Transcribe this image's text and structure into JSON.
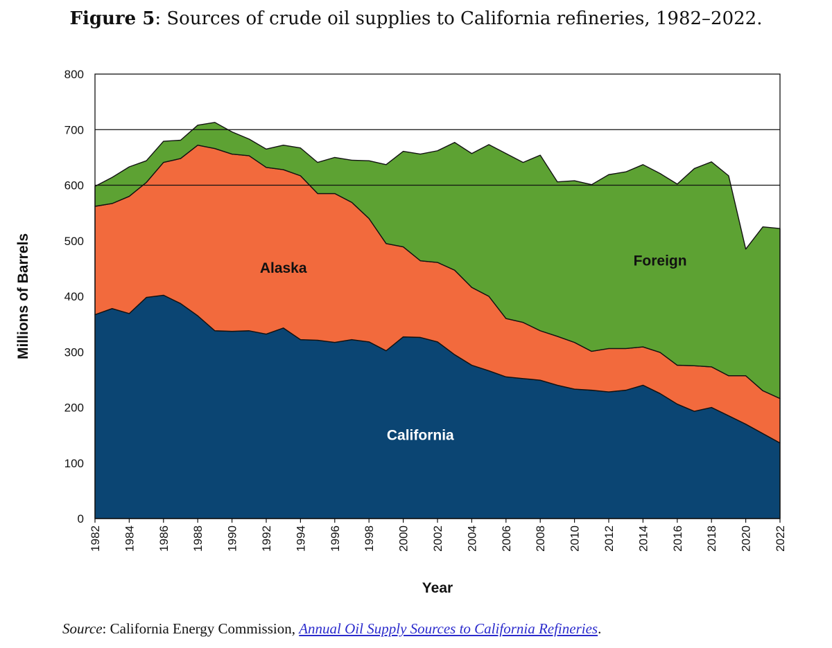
{
  "figure": {
    "label": "Figure 5",
    "caption": ": Sources of crude oil supplies to California refineries, 1982–2022."
  },
  "source": {
    "prefix": "Source",
    "text": ": California Energy Commission, ",
    "link_text": "Annual Oil Supply Sources to California Refineries",
    "suffix": "."
  },
  "chart_data": {
    "type": "area",
    "stacked": true,
    "xlabel": "Year",
    "ylabel": "Millions of Barrels",
    "xlim": [
      1982,
      2022
    ],
    "ylim": [
      0,
      800
    ],
    "yticks": [
      0,
      100,
      200,
      300,
      400,
      500,
      600,
      700,
      800
    ],
    "xticks": [
      1982,
      1984,
      1986,
      1988,
      1990,
      1992,
      1994,
      1996,
      1998,
      2000,
      2002,
      2004,
      2006,
      2008,
      2010,
      2012,
      2014,
      2016,
      2018,
      2020,
      2022
    ],
    "grid": "horizontal at 600, 700, 800",
    "legend": "labels inside areas",
    "x": [
      1982,
      1983,
      1984,
      1985,
      1986,
      1987,
      1988,
      1989,
      1990,
      1991,
      1992,
      1993,
      1994,
      1995,
      1996,
      1997,
      1998,
      1999,
      2000,
      2001,
      2002,
      2003,
      2004,
      2005,
      2006,
      2007,
      2008,
      2009,
      2010,
      2011,
      2012,
      2013,
      2014,
      2015,
      2016,
      2017,
      2018,
      2019,
      2020,
      2021,
      2022
    ],
    "series": [
      {
        "name": "California",
        "color": "#0b4573",
        "label_color": "#ffffff",
        "label_at": [
          2001,
          150
        ],
        "values": [
          367,
          378,
          369,
          398,
          402,
          387,
          365,
          338,
          337,
          338,
          332,
          343,
          322,
          321,
          317,
          322,
          318,
          302,
          327,
          326,
          318,
          295,
          276,
          266,
          255,
          252,
          249,
          240,
          233,
          231,
          228,
          231,
          240,
          225,
          206,
          193,
          200,
          185,
          170,
          153,
          136
        ]
      },
      {
        "name": "Alaska",
        "color": "#f26a3d",
        "label_color": "#111111",
        "label_at": [
          1993,
          451
        ],
        "values": [
          195,
          189,
          211,
          207,
          239,
          261,
          307,
          328,
          319,
          315,
          300,
          285,
          295,
          264,
          268,
          247,
          222,
          193,
          162,
          138,
          143,
          152,
          140,
          134,
          105,
          101,
          89,
          88,
          84,
          70,
          78,
          75,
          69,
          74,
          70,
          82,
          73,
          72,
          87,
          77,
          80
        ]
      },
      {
        "name": "Foreign",
        "color": "#5da233",
        "label_color": "#111111",
        "label_at": [
          2015,
          464
        ],
        "values": [
          36,
          47,
          53,
          39,
          38,
          33,
          36,
          47,
          40,
          30,
          33,
          44,
          50,
          56,
          65,
          76,
          104,
          142,
          172,
          192,
          201,
          230,
          241,
          273,
          297,
          288,
          316,
          278,
          291,
          300,
          313,
          318,
          328,
          322,
          326,
          355,
          369,
          360,
          228,
          295,
          306
        ]
      }
    ]
  }
}
